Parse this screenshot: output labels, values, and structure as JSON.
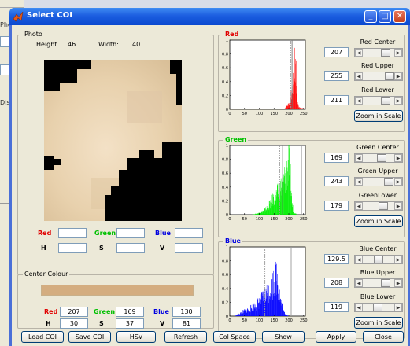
{
  "background_window": {
    "labels": [
      "Pho",
      "Dis"
    ]
  },
  "window": {
    "title": "Select COI",
    "controls": {
      "minimize": "_",
      "maximize": "□",
      "close": "✕"
    }
  },
  "photo": {
    "group_label": "Photo",
    "height_label": "Height",
    "height_value": "46",
    "width_label": "Width:",
    "width_value": "40"
  },
  "pixel_readout": {
    "red_label": "Red",
    "green_label": "Green",
    "blue_label": "Blue",
    "h_label": "H",
    "s_label": "S",
    "v_label": "V",
    "red": "",
    "green": "",
    "blue": "",
    "h": "",
    "s": "",
    "v": ""
  },
  "center_colour": {
    "group_label": "Center Colour",
    "swatch_color": "#d4ad80",
    "red_label": "Red",
    "green_label": "Green",
    "blue_label": "Blue",
    "h_label": "H",
    "s_label": "S",
    "v_label": "V",
    "red": "207",
    "green": "169",
    "blue": "130",
    "h": "30",
    "s": "37",
    "v": "81"
  },
  "histograms": [
    {
      "key": "red",
      "label": "Red",
      "color": "#ff0000",
      "center_label": "Red Center",
      "center_value": "207",
      "upper_label": "Red Upper",
      "upper_value": "255",
      "lower_label": "Red Lower",
      "lower_value": "211",
      "zoom_label": "Zoom in Scale",
      "center_frac": 0.81,
      "upper_frac": 1.0,
      "lower_frac": 0.83
    },
    {
      "key": "green",
      "label": "Green",
      "color": "#00ee00",
      "center_label": "Green Center",
      "center_value": "169",
      "upper_label": "Green Upper",
      "upper_value": "243",
      "lower_label": "GreenLower",
      "lower_value": "179",
      "zoom_label": "Zoom in Scale",
      "center_frac": 0.66,
      "upper_frac": 0.95,
      "lower_frac": 0.7
    },
    {
      "key": "blue",
      "label": "Blue",
      "color": "#0000ff",
      "center_label": "Blue Center",
      "center_value": "129.5",
      "upper_label": "Blue Upper",
      "upper_value": "208",
      "lower_label": "Blue Lower",
      "lower_value": "119",
      "zoom_label": "Zoom in Scale",
      "center_frac": 0.51,
      "upper_frac": 0.82,
      "lower_frac": 0.47
    }
  ],
  "chart_data": [
    {
      "type": "bar",
      "series": [
        {
          "color": "#ff0000"
        }
      ],
      "xlim": [
        0,
        256
      ],
      "ylim": [
        0,
        1
      ],
      "xticks": [
        "0",
        "50",
        "100",
        "150",
        "200",
        "250"
      ],
      "yticks": [
        "0",
        "0.2",
        "0.4",
        "0.6",
        "0.8",
        "1"
      ],
      "vlines": [
        207,
        211,
        255
      ],
      "profile": [
        [
          180,
          0
        ],
        [
          188,
          0.02
        ],
        [
          195,
          0.06
        ],
        [
          200,
          0.1
        ],
        [
          205,
          0.16
        ],
        [
          210,
          0.28
        ],
        [
          215,
          0.42
        ],
        [
          218,
          0.6
        ],
        [
          222,
          0.95
        ],
        [
          225,
          0.35
        ],
        [
          228,
          0.12
        ],
        [
          232,
          0.05
        ],
        [
          240,
          0.02
        ],
        [
          255,
          0.01
        ]
      ]
    },
    {
      "type": "bar",
      "series": [
        {
          "color": "#00ee00"
        }
      ],
      "xlim": [
        0,
        256
      ],
      "ylim": [
        0,
        1
      ],
      "xticks": [
        "0",
        "50",
        "100",
        "150",
        "200",
        "250"
      ],
      "yticks": [
        "0",
        "0.2",
        "0.4",
        "0.6",
        "0.8",
        "1"
      ],
      "vlines": [
        169,
        179,
        243
      ],
      "profile": [
        [
          75,
          0
        ],
        [
          95,
          0.02
        ],
        [
          110,
          0.05
        ],
        [
          125,
          0.1
        ],
        [
          140,
          0.2
        ],
        [
          155,
          0.3
        ],
        [
          165,
          0.35
        ],
        [
          175,
          0.45
        ],
        [
          185,
          0.55
        ],
        [
          195,
          0.72
        ],
        [
          200,
          0.85
        ],
        [
          205,
          0.55
        ],
        [
          210,
          0.2
        ],
        [
          215,
          0.05
        ],
        [
          225,
          0.01
        ]
      ]
    },
    {
      "type": "bar",
      "series": [
        {
          "color": "#0000ff"
        }
      ],
      "xlim": [
        0,
        256
      ],
      "ylim": [
        0,
        1
      ],
      "xticks": [
        "0",
        "50",
        "100",
        "150",
        "200",
        "250"
      ],
      "yticks": [
        "0",
        "0.2",
        "0.4",
        "0.6",
        "0.8",
        "1"
      ],
      "vlines": [
        119,
        129.5,
        208
      ],
      "profile": [
        [
          15,
          0
        ],
        [
          30,
          0.03
        ],
        [
          45,
          0.07
        ],
        [
          60,
          0.1
        ],
        [
          75,
          0.13
        ],
        [
          90,
          0.18
        ],
        [
          105,
          0.25
        ],
        [
          120,
          0.33
        ],
        [
          135,
          0.42
        ],
        [
          148,
          0.55
        ],
        [
          158,
          0.62
        ],
        [
          165,
          0.45
        ],
        [
          172,
          0.25
        ],
        [
          180,
          0.08
        ],
        [
          190,
          0.02
        ],
        [
          200,
          0
        ]
      ]
    }
  ],
  "buttons": {
    "load": "Load COI",
    "save": "Save COI",
    "hsv": "HSV",
    "refresh": "Refresh",
    "colspace": "Col Space",
    "show": "Show",
    "apply": "Apply",
    "close": "Close"
  }
}
